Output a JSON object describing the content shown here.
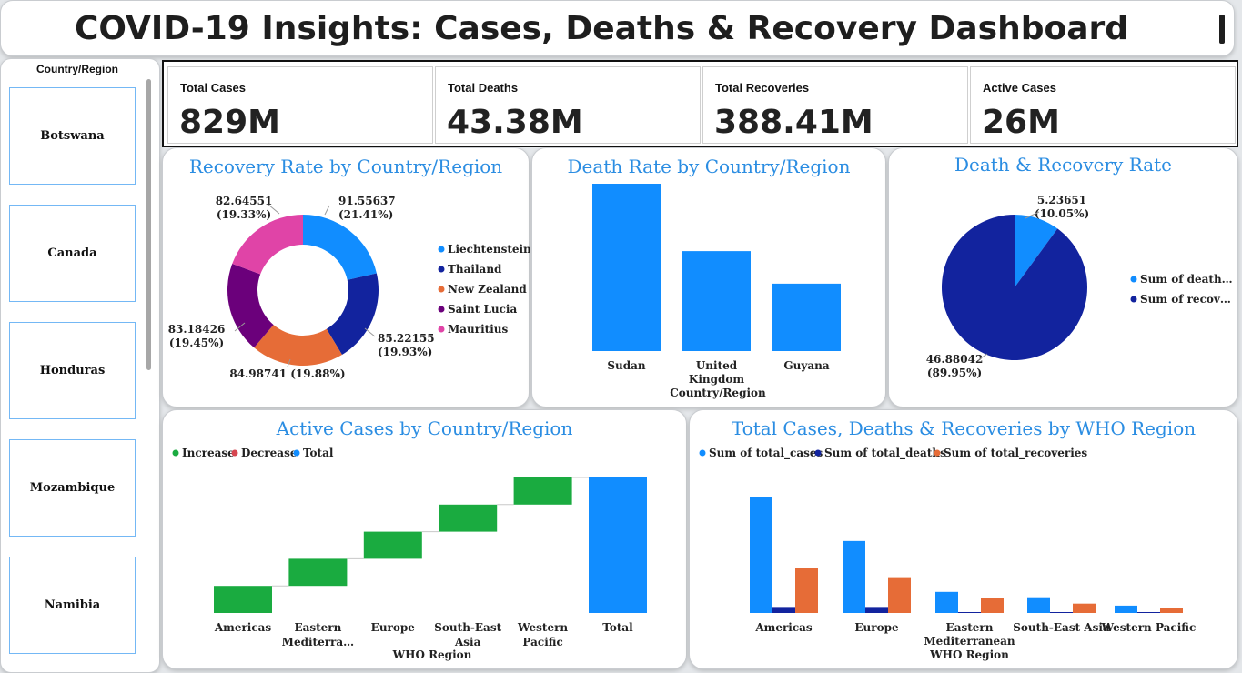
{
  "header": {
    "title": "COVID-19 Insights: Cases, Deaths & Recovery Dashboard"
  },
  "slicer": {
    "title": "Country/Region",
    "items": [
      "Botswana",
      "Canada",
      "Honduras",
      "Mozambique",
      "Namibia"
    ]
  },
  "kpis": [
    {
      "label": "Total Cases",
      "value": "829M"
    },
    {
      "label": "Total Deaths",
      "value": "43.38M"
    },
    {
      "label": "Total Recoveries",
      "value": "388.41M"
    },
    {
      "label": "Active Cases",
      "value": "26M"
    }
  ],
  "colors": {
    "accent": "#2b8de2",
    "blue": "#118dff",
    "navy": "#12239e",
    "orange": "#e66c37",
    "purple": "#6b007b",
    "pink": "#e044a7",
    "green": "#1aab40",
    "red": "#d64550"
  },
  "chart_data": [
    {
      "id": "recovery-rate",
      "type": "pie",
      "title": "Recovery Rate by Country/Region",
      "donut": true,
      "legend_position": "right",
      "categories": [
        "Liechtenstein",
        "Thailand",
        "New Zealand",
        "Saint Lucia",
        "Mauritius"
      ],
      "values": [
        91.55637,
        85.22155,
        84.98741,
        83.18426,
        82.64551
      ],
      "labels": [
        "91.55637\n(21.41%)",
        "85.22155\n(19.93%)",
        "84.98741 (19.88%)",
        "83.18426\n(19.45%)",
        "82.64551\n(19.33%)"
      ],
      "colors": [
        "#118dff",
        "#12239e",
        "#e66c37",
        "#6b007b",
        "#e044a7"
      ]
    },
    {
      "id": "death-rate",
      "type": "bar",
      "title": "Death Rate by Country/Region",
      "xlabel": "Country/Region",
      "ylabel": "",
      "categories": [
        "Sudan",
        "United Kingdom",
        "Guyana"
      ],
      "values": [
        7.2,
        4.3,
        2.9
      ],
      "ylim": [
        0,
        7.2
      ],
      "color": "#118dff"
    },
    {
      "id": "death-recovery-rate",
      "type": "pie",
      "title": "Death & Recovery Rate",
      "legend_position": "right",
      "categories": [
        "Sum of death…",
        "Sum of recov…"
      ],
      "values": [
        5.23651,
        46.88042
      ],
      "labels": [
        "5.23651\n(10.05%)",
        "46.88042\n(89.95%)"
      ],
      "colors": [
        "#118dff",
        "#12239e"
      ]
    },
    {
      "id": "active-cases",
      "type": "bar",
      "subtype": "waterfall",
      "title": "Active Cases by Country/Region",
      "xlabel": "WHO Region",
      "legend": [
        "Increase",
        "Decrease",
        "Total"
      ],
      "legend_colors": [
        "#1aab40",
        "#d64550",
        "#118dff"
      ],
      "categories": [
        "Americas",
        "Eastern Mediterra…",
        "Europe",
        "South-East Asia",
        "Western Pacific",
        "Total"
      ],
      "values": [
        5.2,
        5.2,
        5.2,
        5.2,
        5.2,
        26
      ],
      "ylim": [
        0,
        26
      ]
    },
    {
      "id": "who-region",
      "type": "bar",
      "title": "Total Cases, Deaths & Recoveries by WHO Region",
      "legend_position": "top-left",
      "categories": [
        "Americas",
        "Europe",
        "Eastern Mediterranean WHO Region",
        "South-East Asia",
        "Western Pacific"
      ],
      "series": [
        {
          "name": "Sum of total_cases",
          "values": [
            345,
            215,
            63,
            47,
            22
          ],
          "color": "#118dff"
        },
        {
          "name": "Sum of total_deaths",
          "values": [
            18,
            18,
            1.5,
            1.2,
            0.5
          ],
          "color": "#12239e"
        },
        {
          "name": "Sum of total_recoveries",
          "values": [
            135,
            107,
            45,
            28,
            15
          ],
          "color": "#e66c37"
        }
      ],
      "ylim": [
        0,
        345
      ]
    }
  ]
}
